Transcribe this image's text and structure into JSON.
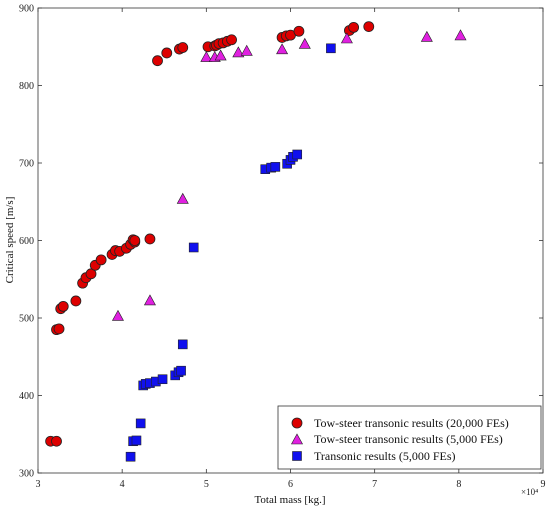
{
  "chart_data": {
    "type": "scatter",
    "xlabel": "Total mass [kg.]",
    "ylabel": "Critical speed [m/s]",
    "x_multiplier_label": "×10⁴",
    "xlim": [
      3,
      9
    ],
    "ylim": [
      300,
      900
    ],
    "x_ticks": [
      "3",
      "4",
      "5",
      "6",
      "7",
      "8",
      "9"
    ],
    "y_ticks": [
      "300",
      "400",
      "500",
      "600",
      "700",
      "800",
      "900"
    ],
    "grid": false,
    "legend_position": "bottom-right",
    "series": [
      {
        "name": "Tow-steer transonic results (20,000 FEs)",
        "marker": "circle",
        "color": "#dd0000",
        "x": [
          3.15,
          3.22,
          3.22,
          3.25,
          3.27,
          3.3,
          3.45,
          3.53,
          3.57,
          3.63,
          3.68,
          3.75,
          3.88,
          3.92,
          3.97,
          4.05,
          4.1,
          4.13,
          4.15,
          4.15,
          4.33,
          4.42,
          4.53,
          4.68,
          4.72,
          5.02,
          5.1,
          5.12,
          5.15,
          5.2,
          5.25,
          5.3,
          5.9,
          5.95,
          6.0,
          6.1,
          6.7,
          6.75,
          6.93
        ],
        "y": [
          341,
          341,
          485,
          486,
          512,
          515,
          522,
          545,
          552,
          557,
          568,
          575,
          582,
          587,
          586,
          590,
          595,
          601,
          598,
          600,
          602,
          832,
          842,
          847,
          849,
          850,
          851,
          852,
          854,
          855,
          857,
          859,
          862,
          864,
          865,
          870,
          871,
          875,
          876
        ]
      },
      {
        "name": "Tow-steer transonic results (5,000 FEs)",
        "marker": "triangle",
        "color": "#e020e0",
        "x": [
          3.95,
          4.33,
          4.72,
          5.0,
          5.1,
          5.17,
          5.38,
          5.48,
          5.9,
          6.17,
          6.67,
          7.62,
          8.02
        ],
        "y": [
          502,
          522,
          653,
          836,
          836,
          838,
          842,
          844,
          846,
          853,
          860,
          862,
          864
        ]
      },
      {
        "name": "Transonic results (5,000 FEs)",
        "marker": "square",
        "color": "#1010ee",
        "x": [
          4.1,
          4.13,
          4.17,
          4.22,
          4.25,
          4.28,
          4.33,
          4.4,
          4.48,
          4.63,
          4.67,
          4.7,
          4.72,
          4.85,
          5.7,
          5.77,
          5.82,
          5.96,
          6.0,
          6.03,
          6.08,
          6.48
        ],
        "y": [
          321,
          341,
          342,
          364,
          413,
          415,
          416,
          418,
          421,
          426,
          430,
          432,
          466,
          591,
          692,
          694,
          695,
          699,
          704,
          708,
          711,
          848
        ]
      }
    ]
  }
}
